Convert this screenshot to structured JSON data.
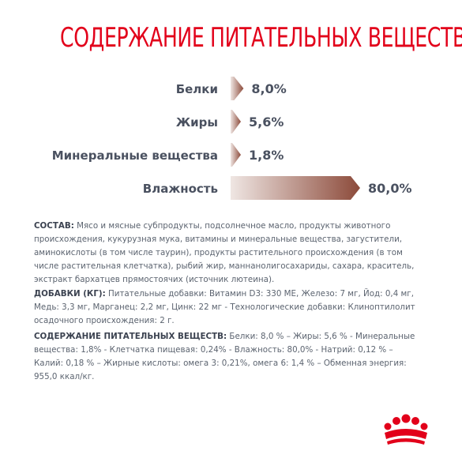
{
  "title": "СОДЕРЖАНИЕ ПИТАТЕЛЬНЫХ ВЕЩЕСТВ",
  "chart_data": {
    "type": "bar",
    "orientation": "horizontal",
    "categories": [
      "Белки",
      "Жиры",
      "Минеральные вещества",
      "Влажность"
    ],
    "values": [
      8.0,
      5.6,
      1.8,
      80.0
    ],
    "data_labels": [
      "8,0%",
      "5,6%",
      "1,8%",
      "80,0%"
    ],
    "title": "",
    "xlabel": "",
    "ylabel": "",
    "xlim": [
      0,
      80
    ],
    "grid": false,
    "legend": "none",
    "colors": {
      "bar_dark": "#8c4a3a",
      "bar_light": "#efe6e3",
      "labels": "#4a5160"
    }
  },
  "composition": {
    "head": "СОСТАВ:",
    "lines": [
      " Мясо и мясные субпродукты, подсолнечное масло, продукты животного",
      "происхождения, кукурузная мука, витамины и минеральные вещества,  загустители,",
      "аминокислоты (в том числе таурин), продукты растительного происхождения (в том",
      "числе растительная клетчатка), рыбий жир,  маннанолигосахариды, сахара, краситель,",
      "экстракт бархатцев прямостоячих (источник лютеина)."
    ]
  },
  "additives": {
    "head": "ДОБАВКИ (КГ):",
    "lines": [
      " Питательные добавки: Витамин D3: 330 МЕ, Железо: 7 мг, Йод: 0,4 мг,",
      "Медь: 3,3 мг, Марганец: 2,2 мг, Цинк: 22 мг - Технологические добавки: Клиноптилолит",
      "осадочного происхождения: 2 г."
    ]
  },
  "nutrients": {
    "head": "СОДЕРЖАНИЕ ПИТАТЕЛЬНЫХ ВЕЩЕСТВ:",
    "lines": [
      " Белки: 8,0 % – Жиры: 5,6 % - Минеральные",
      "вещества: 1,8% - Клетчатка пищевая: 0,24% - Влажность: 80,0% - Натрий: 0,12 % –",
      "Калий: 0,18 % – Жирные кислоты: омега 3: 0,21%, омега 6: 1,4 % – Обменная энергия:",
      "955,0 ккал/кг."
    ]
  },
  "logo": {
    "icon": "royal-canin-crown-icon",
    "color": "#e2001a"
  }
}
